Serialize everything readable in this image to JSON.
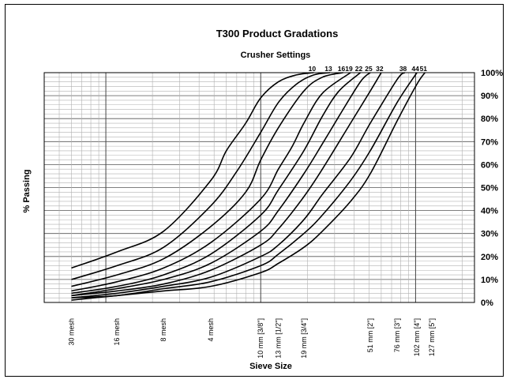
{
  "chart_data": {
    "type": "line",
    "title": "T300 Product Gradations",
    "subtitle": "Crusher Settings",
    "xlabel": "Sieve Size",
    "ylabel": "% Passing",
    "x_scale": "log",
    "x_unit": "mm",
    "xlim": [
      0.4,
      240
    ],
    "ylim": [
      0,
      100
    ],
    "y_ticks": [
      0,
      10,
      20,
      30,
      40,
      50,
      60,
      70,
      80,
      90,
      100
    ],
    "y_tick_labels": [
      "0%",
      "10%",
      "20%",
      "30%",
      "40%",
      "50%",
      "60%",
      "70%",
      "80%",
      "90%",
      "100%"
    ],
    "y_grid_step": 2,
    "x_tick_labels": [
      {
        "label": "30 mesh",
        "x": 0.6
      },
      {
        "label": "16 mesh",
        "x": 1.18
      },
      {
        "label": "8 mesh",
        "x": 2.36
      },
      {
        "label": "4 mesh",
        "x": 4.75
      },
      {
        "label": "10 mm [3/8\"]",
        "x": 10
      },
      {
        "label": "13 mm [1/2\"]",
        "x": 13
      },
      {
        "label": "19 mm [3/4\"]",
        "x": 19
      },
      {
        "label": "51 mm [2\"]",
        "x": 51
      },
      {
        "label": "76 mm [3\"]",
        "x": 76
      },
      {
        "label": "102 mm [4\"]",
        "x": 102
      },
      {
        "label": "127 mm [5\"]",
        "x": 127
      }
    ],
    "x_grid": [
      0.5,
      0.6,
      0.7,
      0.8,
      0.9,
      1,
      2,
      3,
      4,
      5,
      6,
      7,
      8,
      9,
      10,
      20,
      30,
      40,
      50,
      60,
      70,
      80,
      90,
      100,
      200
    ],
    "x_grid_major": [
      1,
      10,
      100
    ],
    "series": [
      {
        "name": "10",
        "x": [
          0.6,
          1.18,
          2.36,
          4.75,
          6,
          8,
          10,
          13,
          17,
          22
        ],
        "y": [
          15,
          22,
          31,
          53,
          66,
          78,
          89,
          96,
          99,
          100
        ]
      },
      {
        "name": "13",
        "x": [
          0.6,
          1.18,
          2.36,
          4.75,
          7,
          10,
          13,
          17,
          22,
          28
        ],
        "y": [
          10,
          16,
          24,
          42,
          57,
          74,
          87,
          95,
          99,
          100
        ]
      },
      {
        "name": "16",
        "x": [
          0.6,
          1.18,
          2.36,
          4.75,
          8,
          10,
          13,
          19,
          25,
          34
        ],
        "y": [
          7,
          12,
          19,
          33,
          48,
          62,
          76,
          92,
          98,
          100
        ]
      },
      {
        "name": "19",
        "x": [
          0.6,
          1.18,
          2.36,
          4.75,
          10,
          13,
          16,
          19,
          25,
          38
        ],
        "y": [
          5,
          9,
          15,
          26,
          45,
          58,
          68,
          78,
          91,
          100
        ]
      },
      {
        "name": "22",
        "x": [
          0.6,
          1.18,
          2.36,
          4.75,
          10,
          13,
          19,
          25,
          32,
          44
        ],
        "y": [
          4,
          7,
          12,
          21,
          38,
          49,
          66,
          81,
          92,
          100
        ]
      },
      {
        "name": "25",
        "x": [
          0.6,
          1.18,
          2.36,
          4.75,
          10,
          13,
          19,
          25,
          32,
          44,
          51
        ],
        "y": [
          3,
          6,
          10,
          17,
          31,
          40,
          56,
          69,
          81,
          96,
          100
        ]
      },
      {
        "name": "32",
        "x": [
          0.6,
          1.18,
          2.36,
          4.75,
          10,
          13,
          19,
          25,
          38,
          51,
          60
        ],
        "y": [
          3,
          5,
          8,
          14,
          25,
          32,
          46,
          58,
          78,
          92,
          100
        ]
      },
      {
        "name": "38",
        "x": [
          0.6,
          1.18,
          2.36,
          4.75,
          10,
          13,
          19,
          25,
          38,
          51,
          76,
          85
        ],
        "y": [
          2,
          4,
          7,
          11,
          20,
          25,
          36,
          47,
          63,
          78,
          97,
          100
        ]
      },
      {
        "name": "44",
        "x": [
          0.6,
          1.18,
          2.36,
          4.75,
          10,
          13,
          19,
          25,
          38,
          51,
          76,
          102
        ],
        "y": [
          2,
          3,
          6,
          9,
          16,
          21,
          30,
          38,
          53,
          66,
          87,
          100
        ]
      },
      {
        "name": "51",
        "x": [
          0.6,
          1.18,
          2.36,
          4.75,
          10,
          13,
          19,
          25,
          38,
          51,
          76,
          102,
          115
        ],
        "y": [
          1,
          3,
          5,
          7,
          13,
          17,
          24,
          31,
          44,
          56,
          79,
          95,
          100
        ]
      }
    ],
    "legend": "none",
    "line_color": "#000000"
  }
}
